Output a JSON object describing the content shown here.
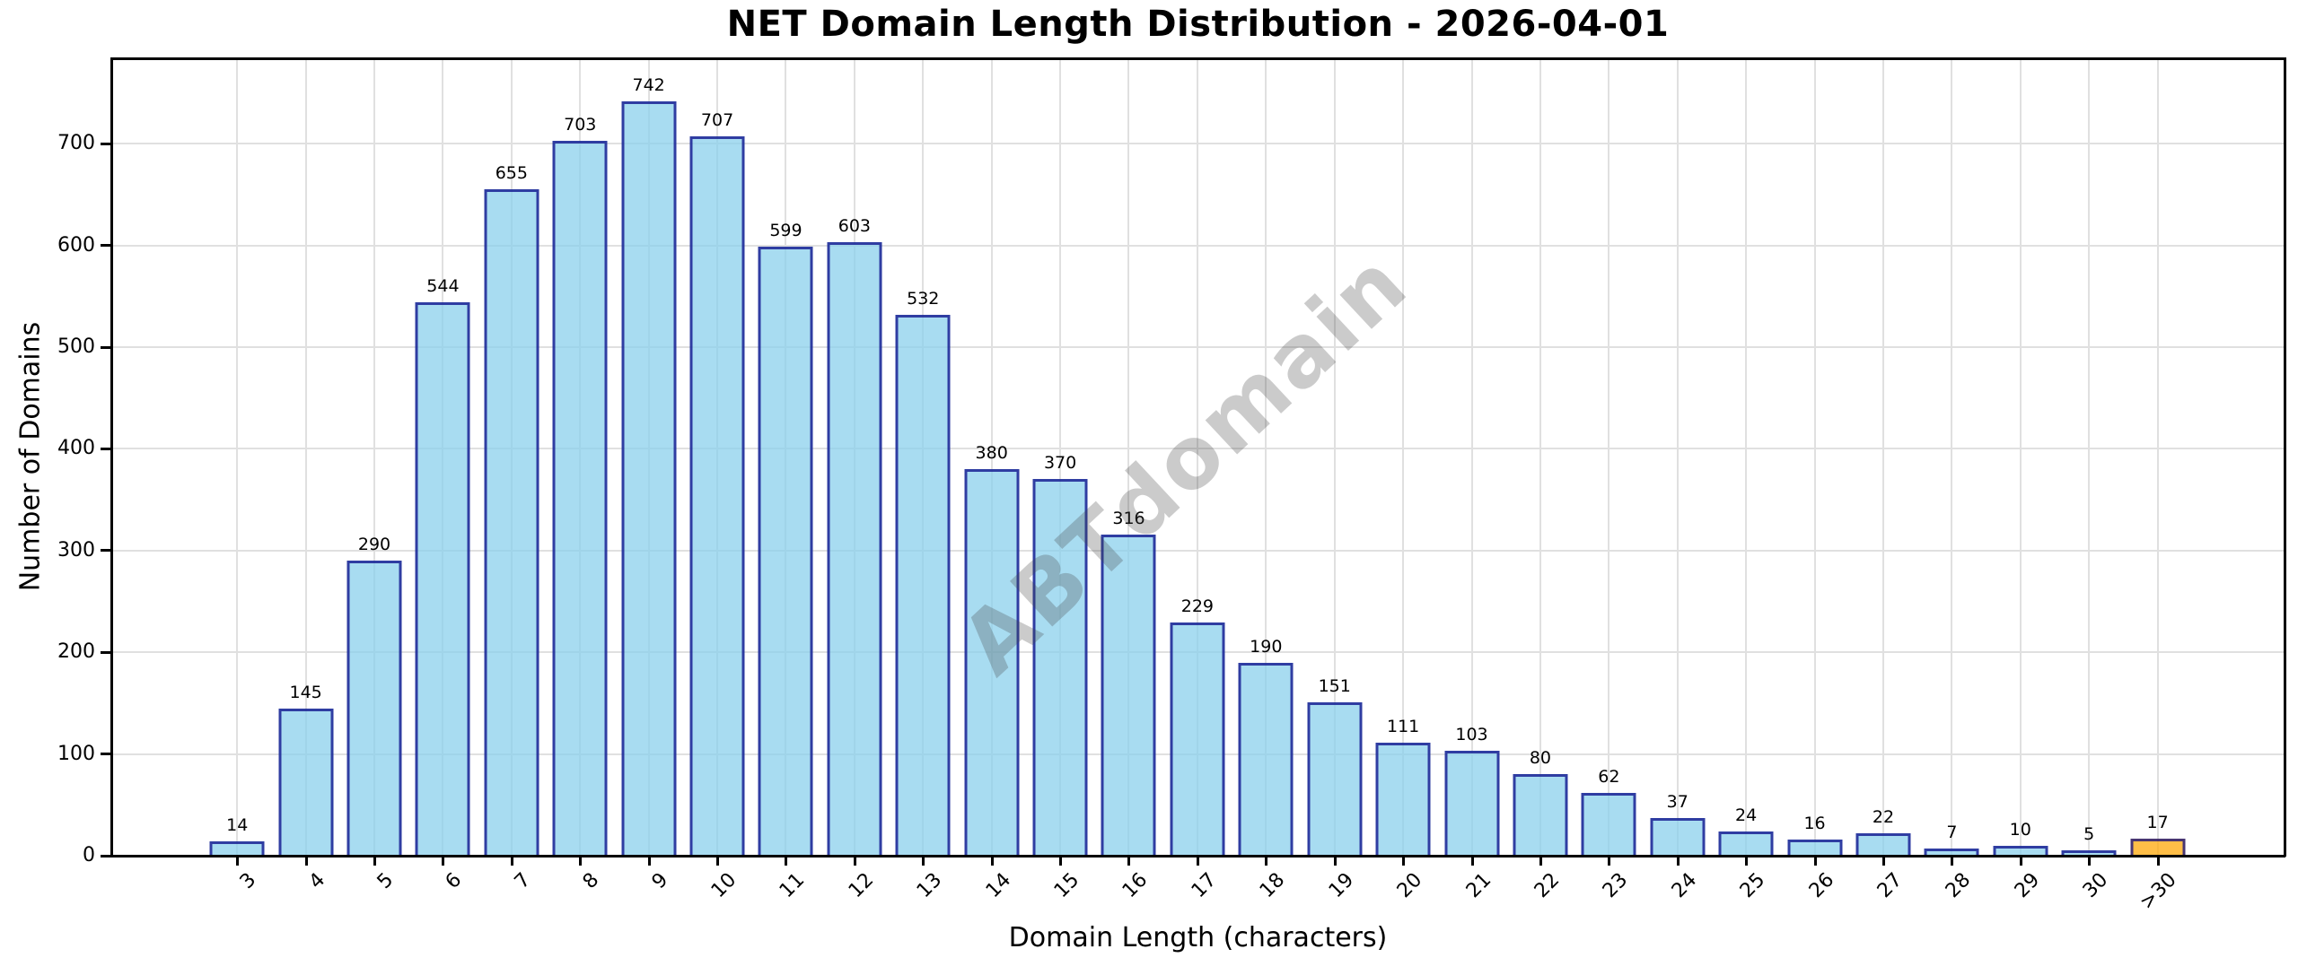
{
  "title": "NET Domain Length Distribution - 2026-04-01",
  "chart_data": {
    "type": "bar",
    "title": "NET Domain Length Distribution - 2026-04-01",
    "xlabel": "Domain Length (characters)",
    "ylabel": "Number of Domains",
    "categories": [
      "3",
      "4",
      "5",
      "6",
      "7",
      "8",
      "9",
      "10",
      "11",
      "12",
      "13",
      "14",
      "15",
      "16",
      "17",
      "18",
      "19",
      "20",
      "21",
      "22",
      "23",
      "24",
      "25",
      "26",
      "27",
      "28",
      "29",
      "30",
      ">30"
    ],
    "values": [
      14,
      145,
      290,
      544,
      655,
      703,
      742,
      707,
      599,
      603,
      532,
      380,
      370,
      316,
      229,
      190,
      151,
      111,
      103,
      80,
      62,
      37,
      24,
      16,
      22,
      7,
      10,
      5,
      17
    ],
    "bar_value_labels": [
      "14",
      "145",
      "290",
      "544",
      "655",
      "703",
      "742",
      "707",
      "599",
      "603",
      "532",
      "380",
      "370",
      "316",
      "229",
      "190",
      "151",
      "111",
      "103",
      "80",
      "62",
      "37",
      "24",
      "16",
      "22",
      "7",
      "10",
      "5",
      "17"
    ],
    "yticks": [
      0,
      100,
      200,
      300,
      400,
      500,
      600,
      700
    ],
    "ylim": [
      0,
      784
    ],
    "grid": true,
    "legend": "none",
    "bar_color": "#87CEEB",
    "bar_edge_color": "#000084",
    "bar_alpha": 0.72,
    "highlight_index": 28,
    "highlight_color": "#FFA500",
    "gridline_color": "#e0e0e0",
    "watermark": "ABTdomain",
    "watermark_color": "#c9c9c9"
  }
}
